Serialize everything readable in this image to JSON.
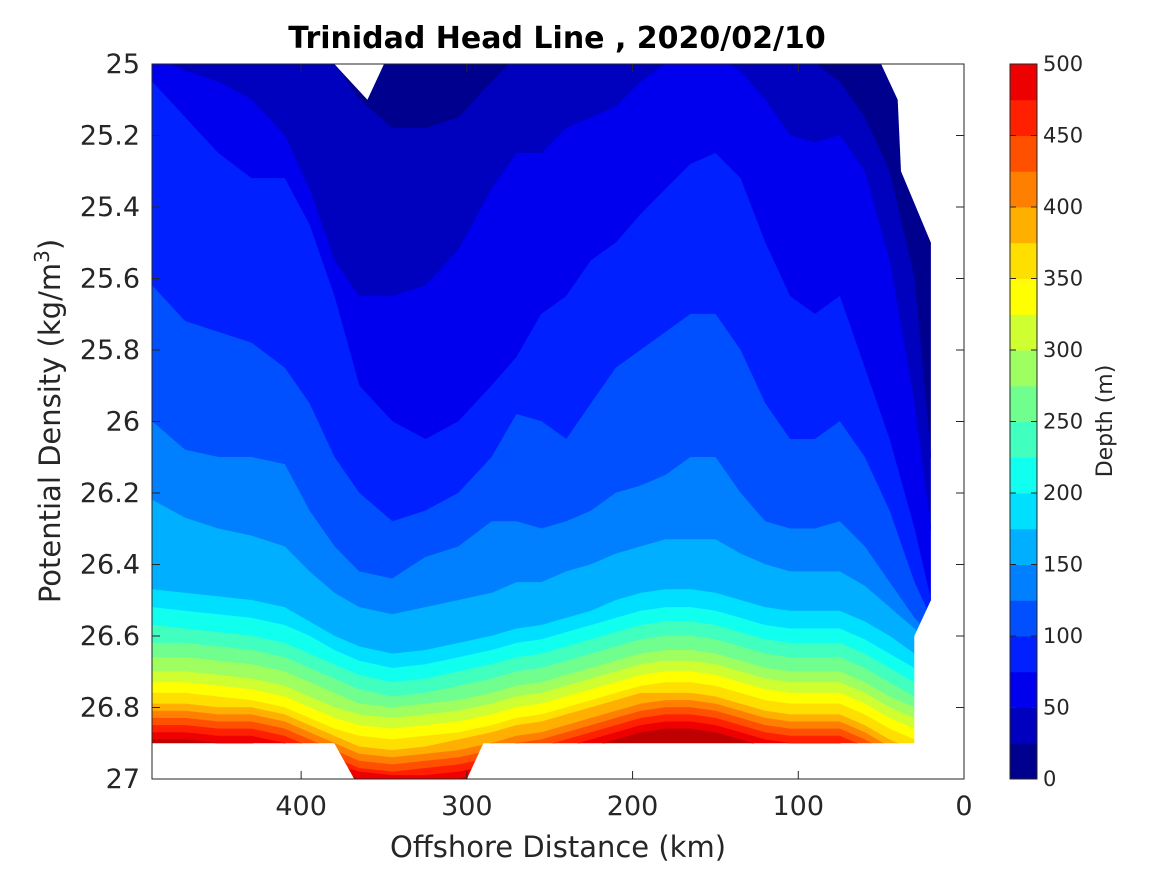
{
  "chart_data": {
    "type": "filled-contour",
    "title": "Trinidad Head Line , 2020/02/10",
    "xlabel": "Offshore Distance (km)",
    "ylabel_main": "Potential Density (kg/m",
    "ylabel_sup": "3",
    "ylabel_close": ")",
    "colorbar_label": "Depth (m)",
    "xlim": [
      490,
      0
    ],
    "x_reversed": true,
    "ylim": [
      25,
      27
    ],
    "y_reversed": true,
    "xticks": [
      400,
      300,
      200,
      100,
      0
    ],
    "yticks": [
      "25",
      "25.2",
      "25.4",
      "25.6",
      "25.8",
      "26",
      "26.2",
      "26.4",
      "26.6",
      "26.8",
      "27"
    ],
    "ytick_values": [
      25,
      25.2,
      25.4,
      25.6,
      25.8,
      26,
      26.2,
      26.4,
      26.6,
      26.8,
      27
    ],
    "colorbar_ticks": [
      0,
      50,
      100,
      150,
      200,
      250,
      300,
      350,
      400,
      450,
      500
    ],
    "colorbar_range": [
      0,
      500
    ],
    "contour_step": 25,
    "colormap": [
      "#00008f",
      "#0000bf",
      "#0000ef",
      "#0020ff",
      "#0050ff",
      "#0080ff",
      "#00afff",
      "#00dfff",
      "#10ffef",
      "#40ffbf",
      "#70ff8f",
      "#9fff60",
      "#cfff30",
      "#ffff00",
      "#ffdf00",
      "#ffaf00",
      "#ff8000",
      "#ff5000",
      "#ff2000",
      "#ef0000",
      "#bf0000"
    ],
    "axes_color": "#262626",
    "x": [
      490,
      470,
      450,
      430,
      410,
      395,
      380,
      365,
      345,
      325,
      305,
      285,
      270,
      255,
      240,
      225,
      210,
      195,
      180,
      165,
      150,
      135,
      120,
      105,
      90,
      75,
      60,
      45,
      30,
      20
    ],
    "depth_isopycnals": [
      {
        "depth": 25,
        "y": [
          24.9,
          24.9,
          24.9,
          24.9,
          24.9,
          24.9,
          25.0,
          25.1,
          25.18,
          25.18,
          25.15,
          25.05,
          24.98,
          24.95,
          24.93,
          24.92,
          24.9,
          24.88,
          24.88,
          24.88,
          24.88,
          24.9,
          24.92,
          24.95,
          25.0,
          25.05,
          25.15,
          25.3,
          25.6,
          26.1
        ]
      },
      {
        "depth": 50,
        "y": [
          24.98,
          25.02,
          25.05,
          25.1,
          25.2,
          25.35,
          25.55,
          25.65,
          25.65,
          25.62,
          25.52,
          25.35,
          25.25,
          25.25,
          25.18,
          25.15,
          25.12,
          25.05,
          25.0,
          24.98,
          24.98,
          25.02,
          25.1,
          25.2,
          25.22,
          25.2,
          25.3,
          25.55,
          25.95,
          26.3
        ]
      },
      {
        "depth": 75,
        "y": [
          25.05,
          25.15,
          25.25,
          25.32,
          25.32,
          25.45,
          25.65,
          25.9,
          26.0,
          26.05,
          26.0,
          25.9,
          25.82,
          25.7,
          25.65,
          25.55,
          25.5,
          25.42,
          25.35,
          25.28,
          25.25,
          25.32,
          25.5,
          25.65,
          25.7,
          25.65,
          25.85,
          26.05,
          26.3,
          26.5
        ]
      },
      {
        "depth": 100,
        "y": [
          25.62,
          25.72,
          25.75,
          25.78,
          25.85,
          25.95,
          26.1,
          26.2,
          26.28,
          26.25,
          26.2,
          26.1,
          25.98,
          26.0,
          26.05,
          25.95,
          25.85,
          25.8,
          25.75,
          25.7,
          25.7,
          25.8,
          25.95,
          26.05,
          26.05,
          26.0,
          26.1,
          26.25,
          26.45,
          26.55
        ]
      },
      {
        "depth": 125,
        "y": [
          26.0,
          26.08,
          26.1,
          26.1,
          26.12,
          26.25,
          26.35,
          26.42,
          26.44,
          26.38,
          26.35,
          26.28,
          26.28,
          26.3,
          26.28,
          26.25,
          26.2,
          26.18,
          26.15,
          26.1,
          26.1,
          26.2,
          26.28,
          26.3,
          26.3,
          26.28,
          26.35,
          26.45,
          26.55,
          26.6
        ]
      },
      {
        "depth": 150,
        "y": [
          26.22,
          26.27,
          26.3,
          26.32,
          26.35,
          26.42,
          26.48,
          26.52,
          26.54,
          26.52,
          26.5,
          26.48,
          26.45,
          26.45,
          26.42,
          26.4,
          26.37,
          26.35,
          26.33,
          26.33,
          26.33,
          26.37,
          26.4,
          26.42,
          26.42,
          26.42,
          26.46,
          26.52,
          26.58,
          26.62
        ]
      },
      {
        "depth": 175,
        "y": [
          26.47,
          26.48,
          26.49,
          26.5,
          26.52,
          26.56,
          26.6,
          26.63,
          26.65,
          26.64,
          26.62,
          26.6,
          26.58,
          26.57,
          26.55,
          26.53,
          26.5,
          26.48,
          26.47,
          26.47,
          26.48,
          26.5,
          26.52,
          26.53,
          26.53,
          26.53,
          26.56,
          26.6,
          26.65,
          26.68
        ]
      },
      {
        "depth": 200,
        "y": [
          26.52,
          26.53,
          26.54,
          26.55,
          26.57,
          26.6,
          26.64,
          26.67,
          26.69,
          26.68,
          26.66,
          26.64,
          26.62,
          26.61,
          26.59,
          26.57,
          26.55,
          26.53,
          26.52,
          26.52,
          26.53,
          26.55,
          26.57,
          26.58,
          26.58,
          26.58,
          26.61,
          26.65,
          26.69,
          26.72
        ]
      },
      {
        "depth": 225,
        "y": [
          26.57,
          26.58,
          26.59,
          26.6,
          26.62,
          26.65,
          26.68,
          26.71,
          26.73,
          26.72,
          26.7,
          26.68,
          26.66,
          26.65,
          26.63,
          26.61,
          26.59,
          26.57,
          26.56,
          26.56,
          26.57,
          26.59,
          26.61,
          26.62,
          26.62,
          26.62,
          26.65,
          26.69,
          26.73,
          26.76
        ]
      },
      {
        "depth": 250,
        "y": [
          26.62,
          26.62,
          26.63,
          26.64,
          26.66,
          26.69,
          26.72,
          26.75,
          26.77,
          26.76,
          26.74,
          26.72,
          26.7,
          26.69,
          26.67,
          26.65,
          26.63,
          26.61,
          26.6,
          26.6,
          26.61,
          26.63,
          26.65,
          26.66,
          26.66,
          26.66,
          26.69,
          26.73,
          26.77,
          26.8
        ]
      },
      {
        "depth": 275,
        "y": [
          26.66,
          26.66,
          26.67,
          26.68,
          26.7,
          26.73,
          26.76,
          26.79,
          26.8,
          26.79,
          26.78,
          26.76,
          26.74,
          26.73,
          26.71,
          26.69,
          26.67,
          26.65,
          26.64,
          26.64,
          26.65,
          26.67,
          26.69,
          26.7,
          26.7,
          26.7,
          26.73,
          26.77,
          26.8,
          26.82
        ]
      },
      {
        "depth": 300,
        "y": [
          26.7,
          26.7,
          26.71,
          26.72,
          26.74,
          26.77,
          26.8,
          26.82,
          26.83,
          26.82,
          26.81,
          26.79,
          26.77,
          26.76,
          26.74,
          26.72,
          26.7,
          26.68,
          26.67,
          26.67,
          26.68,
          26.7,
          26.72,
          26.73,
          26.73,
          26.73,
          26.76,
          26.8,
          26.83,
          26.85
        ]
      },
      {
        "depth": 325,
        "y": [
          26.73,
          26.73,
          26.74,
          26.75,
          26.77,
          26.8,
          26.83,
          26.85,
          26.86,
          26.85,
          26.84,
          26.82,
          26.8,
          26.79,
          26.77,
          26.75,
          26.73,
          26.71,
          26.7,
          26.7,
          26.71,
          26.73,
          26.75,
          26.76,
          26.76,
          26.76,
          26.79,
          26.83,
          26.86,
          26.88
        ]
      },
      {
        "depth": 350,
        "y": [
          26.76,
          26.76,
          26.77,
          26.78,
          26.8,
          26.83,
          26.86,
          26.88,
          26.89,
          26.88,
          26.87,
          26.85,
          26.83,
          26.82,
          26.8,
          26.78,
          26.76,
          26.74,
          26.73,
          26.73,
          26.74,
          26.76,
          26.78,
          26.79,
          26.79,
          26.79,
          26.82,
          26.86,
          26.89,
          26.91
        ]
      },
      {
        "depth": 375,
        "y": [
          26.79,
          26.79,
          26.8,
          26.8,
          26.82,
          26.85,
          26.88,
          26.91,
          26.92,
          26.91,
          26.89,
          26.87,
          26.85,
          26.84,
          26.82,
          26.8,
          26.78,
          26.76,
          26.76,
          26.76,
          26.77,
          26.79,
          26.81,
          26.82,
          26.82,
          26.82,
          26.85,
          26.89,
          26.92,
          26.94
        ]
      },
      {
        "depth": 400,
        "y": [
          26.81,
          26.81,
          26.82,
          26.82,
          26.84,
          26.87,
          26.9,
          26.93,
          26.94,
          26.93,
          26.92,
          26.9,
          26.88,
          26.87,
          26.85,
          26.83,
          26.81,
          26.79,
          26.78,
          26.78,
          26.79,
          26.81,
          26.83,
          26.84,
          26.84,
          26.84,
          26.87,
          26.91,
          26.95,
          26.97
        ]
      },
      {
        "depth": 425,
        "y": [
          26.83,
          26.83,
          26.84,
          26.84,
          26.86,
          26.89,
          26.92,
          26.95,
          26.96,
          26.95,
          26.94,
          26.92,
          26.9,
          26.89,
          26.87,
          26.85,
          26.83,
          26.81,
          26.8,
          26.8,
          26.81,
          26.83,
          26.85,
          26.86,
          26.86,
          26.86,
          26.89,
          26.93,
          26.97,
          26.99
        ]
      },
      {
        "depth": 450,
        "y": [
          26.85,
          26.85,
          26.86,
          26.86,
          26.88,
          26.91,
          26.94,
          26.97,
          26.98,
          26.97,
          26.96,
          26.94,
          26.92,
          26.91,
          26.89,
          26.87,
          26.85,
          26.83,
          26.82,
          26.82,
          26.83,
          26.85,
          26.87,
          26.88,
          26.88,
          26.88,
          26.91,
          26.95,
          26.99,
          27.01
        ]
      },
      {
        "depth": 475,
        "y": [
          26.87,
          26.87,
          26.88,
          26.88,
          26.9,
          26.93,
          26.96,
          26.98,
          26.99,
          26.99,
          26.98,
          26.96,
          26.94,
          26.93,
          26.91,
          26.89,
          26.87,
          26.85,
          26.84,
          26.84,
          26.85,
          26.87,
          26.89,
          26.9,
          26.9,
          26.9,
          26.93,
          26.97,
          27.01,
          27.03
        ]
      },
      {
        "depth": 500,
        "y": [
          26.89,
          26.89,
          26.9,
          26.9,
          26.92,
          26.95,
          26.98,
          27.0,
          27.01,
          27.01,
          27.0,
          26.98,
          26.96,
          26.95,
          26.93,
          26.91,
          26.89,
          26.87,
          26.86,
          26.86,
          26.87,
          26.89,
          26.91,
          26.92,
          26.92,
          26.92,
          26.95,
          26.99,
          27.03,
          27.05
        ]
      }
    ],
    "data_bottom_boundary": [
      {
        "x": 490,
        "y": 26.9
      },
      {
        "x": 380,
        "y": 26.9
      },
      {
        "x": 368,
        "y": 27.0
      },
      {
        "x": 300,
        "y": 27.0
      },
      {
        "x": 290,
        "y": 26.9
      },
      {
        "x": 30,
        "y": 26.9
      }
    ],
    "data_right_boundary": [
      {
        "x": 30,
        "y": 26.9
      },
      {
        "x": 30,
        "y": 26.6
      },
      {
        "x": 20,
        "y": 26.5
      },
      {
        "x": 20,
        "y": 25.5
      },
      {
        "x": 38,
        "y": 25.3
      },
      {
        "x": 40,
        "y": 25.1
      },
      {
        "x": 50,
        "y": 25.0
      }
    ],
    "data_top_notch": [
      {
        "x": 380,
        "y": 25.0
      },
      {
        "x": 360,
        "y": 25.1
      },
      {
        "x": 350,
        "y": 25.0
      }
    ]
  }
}
